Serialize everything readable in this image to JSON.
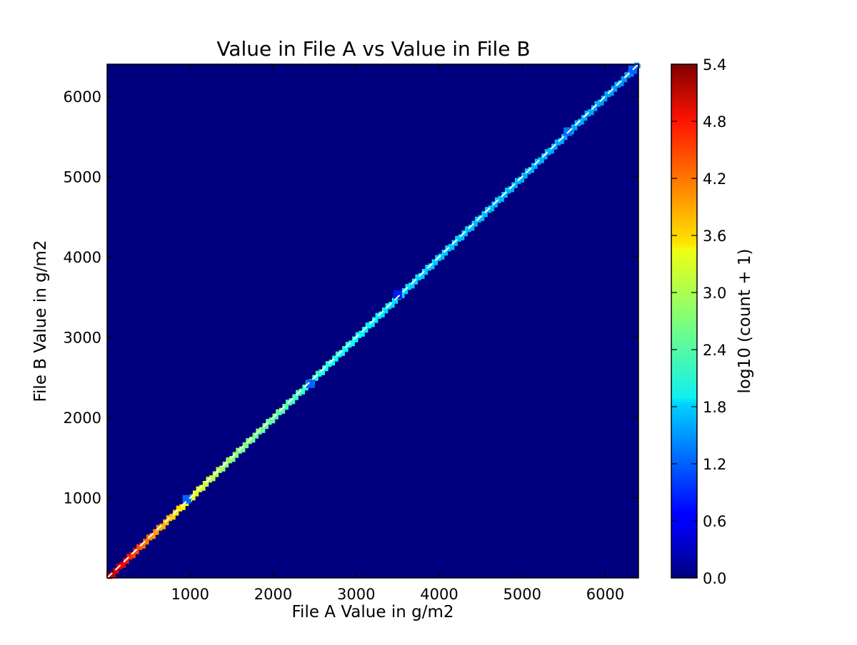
{
  "chart_data": {
    "type": "heatmap",
    "title": "Value in File A vs Value in File B",
    "xlabel": "File A Value in g/m2",
    "ylabel": "File B Value in g/m2",
    "xlim": [
      0,
      6400
    ],
    "ylim": [
      0,
      6400
    ],
    "xticks": [
      1000,
      2000,
      3000,
      4000,
      5000,
      6000
    ],
    "yticks": [
      1000,
      2000,
      3000,
      4000,
      5000,
      6000
    ],
    "grid": false,
    "background_color": "#00007f",
    "reference_line": {
      "from": [
        0,
        0
      ],
      "to": [
        6400,
        6400
      ],
      "style": "dashed",
      "color": "#ffffff"
    },
    "colorbar": {
      "label": "log10 (count + 1)",
      "range": [
        0.0,
        5.4
      ],
      "ticks": [
        "0.0",
        "0.6",
        "1.2",
        "1.8",
        "2.4",
        "3.0",
        "3.6",
        "4.2",
        "4.8",
        "5.4"
      ],
      "colormap": "jet"
    },
    "diagonal_profile": [
      {
        "x": 0,
        "log_count": 5.3
      },
      {
        "x": 150,
        "log_count": 5.0
      },
      {
        "x": 300,
        "log_count": 4.6
      },
      {
        "x": 500,
        "log_count": 4.2
      },
      {
        "x": 700,
        "log_count": 3.9
      },
      {
        "x": 900,
        "log_count": 3.6
      },
      {
        "x": 1200,
        "log_count": 3.2
      },
      {
        "x": 1500,
        "log_count": 2.9
      },
      {
        "x": 2000,
        "log_count": 2.7
      },
      {
        "x": 2500,
        "log_count": 2.4
      },
      {
        "x": 3000,
        "log_count": 2.2
      },
      {
        "x": 3500,
        "log_count": 2.0
      },
      {
        "x": 4000,
        "log_count": 1.9
      },
      {
        "x": 5000,
        "log_count": 1.8
      },
      {
        "x": 6000,
        "log_count": 1.7
      },
      {
        "x": 6400,
        "log_count": 1.6
      }
    ],
    "outlier_cells": [
      {
        "x": 960,
        "y": 980,
        "log_count": 1.2
      },
      {
        "x": 2450,
        "y": 2420,
        "log_count": 1.2
      },
      {
        "x": 3500,
        "y": 3530,
        "log_count": 0.8
      },
      {
        "x": 5550,
        "y": 5560,
        "log_count": 1.3
      },
      {
        "x": 6330,
        "y": 6330,
        "log_count": 1.2
      }
    ]
  }
}
